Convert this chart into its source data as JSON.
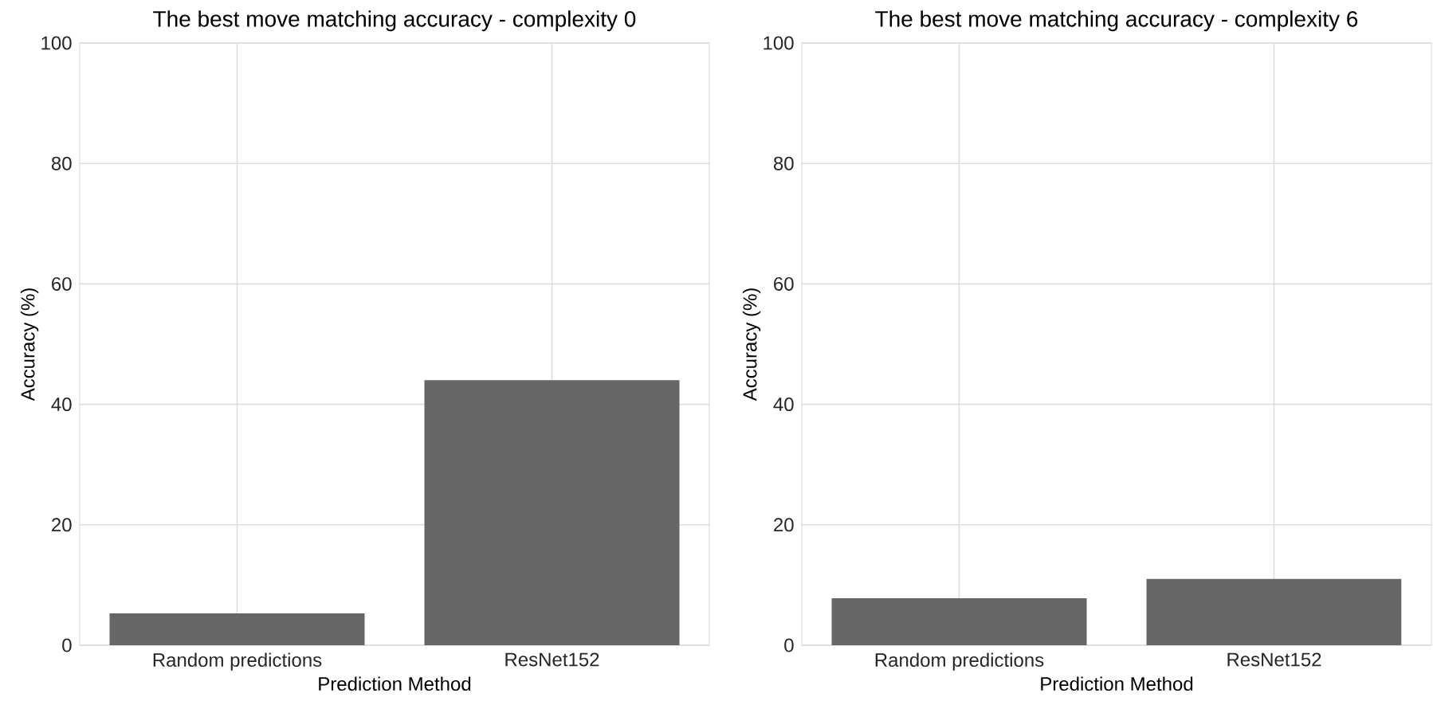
{
  "chart_data": [
    {
      "type": "bar",
      "title": "The best move matching accuracy - complexity 0",
      "xlabel": "Prediction Method",
      "ylabel": "Accuracy (%)",
      "categories": [
        "Random predictions",
        "ResNet152"
      ],
      "values": [
        5.3,
        44.0
      ],
      "color": "#666666",
      "ylim": [
        0,
        100
      ],
      "yticks": [
        0,
        20,
        40,
        60,
        80,
        100
      ],
      "grid": true
    },
    {
      "type": "bar",
      "title": "The best move matching accuracy - complexity 6",
      "xlabel": "Prediction Method",
      "ylabel": "Accuracy (%)",
      "categories": [
        "Random predictions",
        "ResNet152"
      ],
      "values": [
        7.8,
        11.0
      ],
      "color": "#666666",
      "ylim": [
        0,
        100
      ],
      "yticks": [
        0,
        20,
        40,
        60,
        80,
        100
      ],
      "grid": true
    }
  ]
}
